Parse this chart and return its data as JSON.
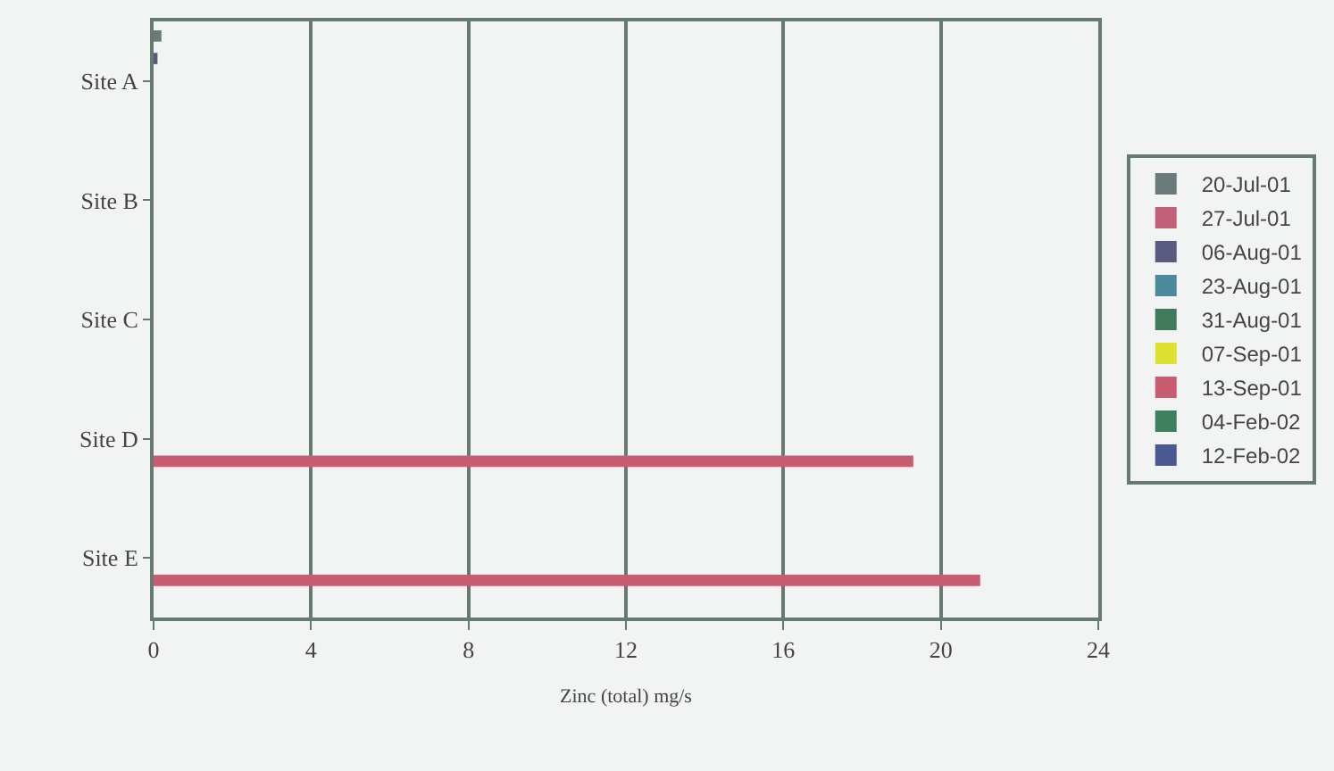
{
  "chart_data": {
    "type": "bar",
    "orientation": "horizontal",
    "xlabel": "Zinc (total) mg/s",
    "categories": [
      "Site A",
      "Site B",
      "Site C",
      "Site D",
      "Site E"
    ],
    "series": [
      {
        "name": "20-Jul-01",
        "color": "#6b7b7b",
        "values": [
          0.2,
          null,
          null,
          null,
          null
        ]
      },
      {
        "name": "27-Jul-01",
        "color": "#c0607a",
        "values": [
          null,
          null,
          null,
          null,
          null
        ]
      },
      {
        "name": "06-Aug-01",
        "color": "#5a5a80",
        "values": [
          0.1,
          null,
          null,
          null,
          null
        ]
      },
      {
        "name": "23-Aug-01",
        "color": "#4a8a9a",
        "values": [
          null,
          null,
          null,
          null,
          null
        ]
      },
      {
        "name": "31-Aug-01",
        "color": "#3f7a5a",
        "values": [
          null,
          null,
          null,
          null,
          null
        ]
      },
      {
        "name": "07-Sep-01",
        "color": "#e0e030",
        "values": [
          null,
          null,
          null,
          null,
          null
        ]
      },
      {
        "name": "13-Sep-01",
        "color": "#c85c70",
        "values": [
          null,
          null,
          null,
          19.3,
          21.0
        ]
      },
      {
        "name": "04-Feb-02",
        "color": "#3f8060",
        "values": [
          null,
          null,
          null,
          null,
          null
        ]
      },
      {
        "name": "12-Feb-02",
        "color": "#4a5a90",
        "values": [
          null,
          null,
          null,
          null,
          null
        ]
      }
    ],
    "xlim": [
      0,
      24
    ],
    "xticks": [
      0,
      4,
      8,
      12,
      16,
      20,
      24
    ],
    "grid": "x",
    "legend": "right"
  }
}
